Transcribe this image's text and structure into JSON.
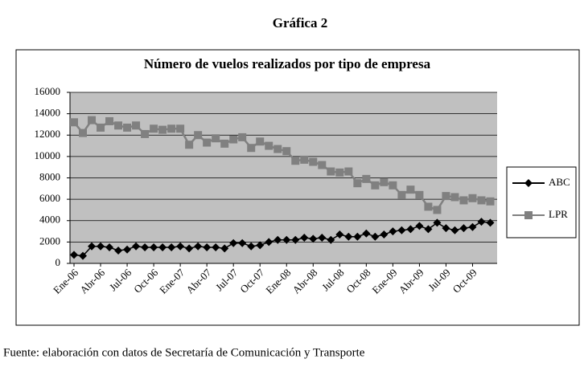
{
  "chart_data": {
    "type": "line",
    "figure_label": "Gráfica 2",
    "title": "Número de vuelos realizados por tipo de empresa",
    "source": "Fuente: elaboración con datos de Secretaría de Comunicación y Transporte",
    "categories": [
      "Ene-06",
      null,
      null,
      "Abr-06",
      null,
      null,
      "Jul-06",
      null,
      null,
      "Oct-06",
      null,
      null,
      "Ene-07",
      null,
      null,
      "Abr-07",
      null,
      null,
      "Jul-07",
      null,
      null,
      "Oct-07",
      null,
      null,
      "Ene-08",
      null,
      null,
      "Abr-08",
      null,
      null,
      "Jul-08",
      null,
      null,
      "Oct-08",
      null,
      null,
      "Ene-09",
      null,
      null,
      "Abr-09",
      null,
      null,
      "Jul-09",
      null,
      null,
      "Oct-09",
      null,
      null
    ],
    "series": [
      {
        "name": "ABC",
        "color": "#000000",
        "marker": "diamond",
        "values": [
          800,
          700,
          1600,
          1600,
          1500,
          1200,
          1300,
          1600,
          1500,
          1500,
          1500,
          1500,
          1600,
          1400,
          1600,
          1500,
          1500,
          1400,
          1900,
          1900,
          1600,
          1700,
          2000,
          2200,
          2200,
          2200,
          2400,
          2300,
          2400,
          2200,
          2700,
          2500,
          2500,
          2800,
          2500,
          2700,
          3000,
          3100,
          3200,
          3500,
          3200,
          3800,
          3300,
          3100,
          3300,
          3400,
          3900,
          3800
        ]
      },
      {
        "name": "LPR",
        "color": "#808080",
        "marker": "square",
        "values": [
          13200,
          12200,
          13400,
          12700,
          13300,
          12900,
          12700,
          12900,
          12100,
          12600,
          12500,
          12600,
          12600,
          11100,
          12000,
          11300,
          11700,
          11200,
          11600,
          11800,
          10800,
          11400,
          11000,
          10700,
          10500,
          9600,
          9700,
          9500,
          9200,
          8600,
          8500,
          8600,
          7500,
          7900,
          7300,
          7600,
          7300,
          6400,
          6900,
          6400,
          5300,
          5000,
          6300,
          6200,
          5900,
          6100,
          5900,
          5800
        ]
      }
    ],
    "ylim": [
      0,
      16000
    ],
    "yticks": [
      0,
      2000,
      4000,
      6000,
      8000,
      10000,
      12000,
      14000,
      16000
    ],
    "grid": true,
    "legend": "right"
  }
}
